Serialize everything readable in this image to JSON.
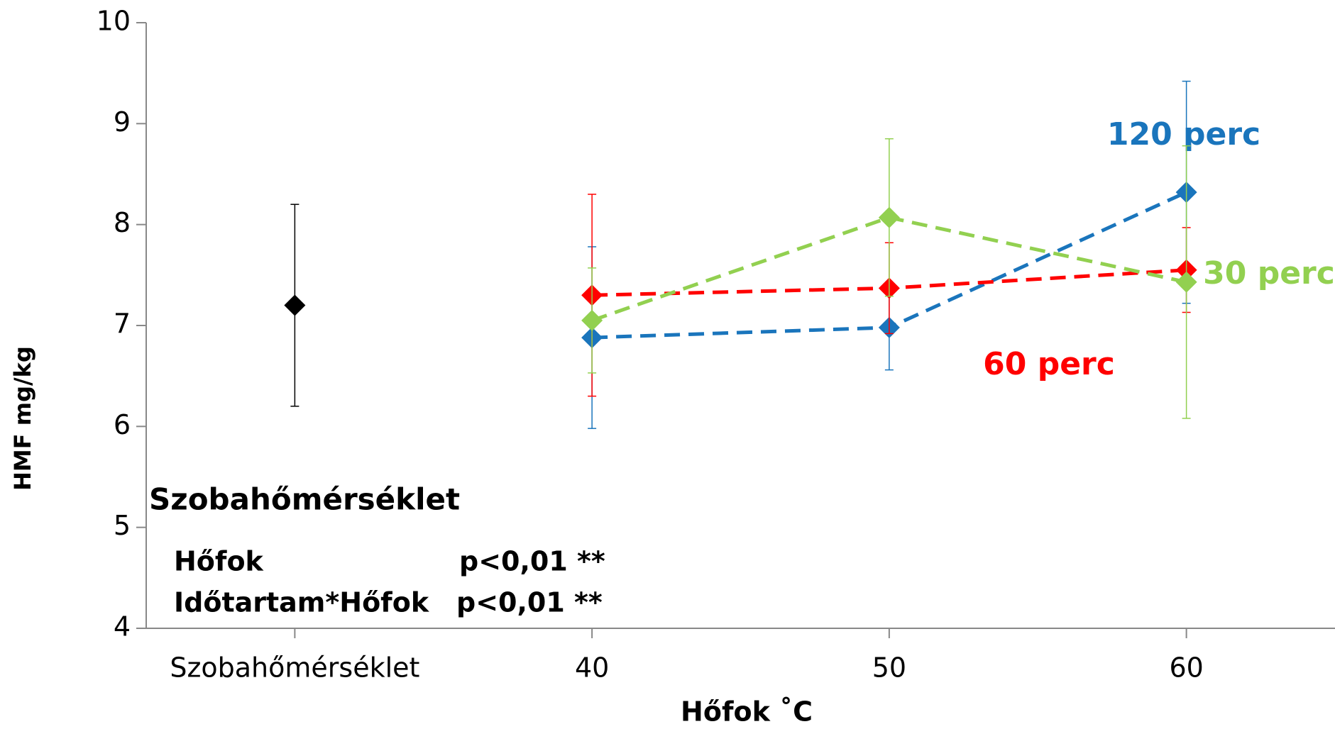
{
  "chart_data": {
    "type": "line",
    "x_label": "Hőfok ˚C",
    "y_label": "HMF mg/kg",
    "categories": [
      "Szobahőmérséklet",
      "40",
      "50",
      "60"
    ],
    "ylim": [
      4,
      10
    ],
    "yticks": [
      4,
      5,
      6,
      7,
      8,
      9,
      10
    ],
    "series": [
      {
        "color": "#000000",
        "values": [
          7.2,
          null,
          null,
          null
        ],
        "errors": [
          1.0,
          null,
          null,
          null
        ]
      },
      {
        "name": "120 perc",
        "color": "#1a75bc",
        "values": [
          null,
          6.88,
          6.98,
          8.32
        ],
        "errors": [
          null,
          0.9,
          0.42,
          1.1
        ]
      },
      {
        "name": "60 perc",
        "color": "#ff0000",
        "values": [
          null,
          7.3,
          7.37,
          7.55
        ],
        "errors": [
          null,
          1.0,
          0.45,
          0.42
        ]
      },
      {
        "name": "30 perc",
        "color": "#92d050",
        "values": [
          null,
          7.05,
          8.07,
          7.43
        ],
        "errors": [
          null,
          0.52,
          0.78,
          1.35
        ]
      }
    ],
    "annotations": [
      "Szobahőmérséklet",
      "Hőfok",
      "p<0,01 **",
      "Időtartam*Hőfok",
      "p<0,01 **"
    ]
  }
}
